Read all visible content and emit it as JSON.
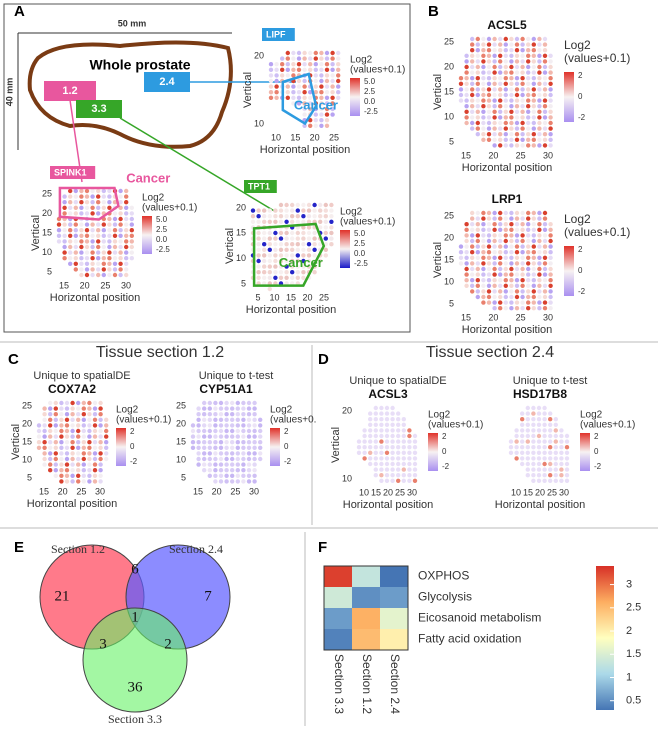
{
  "panels": {
    "a": {
      "label": "A",
      "scale_x": "50 mm",
      "scale_y": "40 mm",
      "organ": "Whole prostate",
      "sections": [
        "1.2",
        "2.4",
        "3.3"
      ],
      "plots": [
        {
          "gene": "LIPF",
          "region": "Cancer",
          "ylabel": "Vertical",
          "xlabel": "Horizontal position",
          "xticks": [
            "10",
            "15",
            "20",
            "25"
          ],
          "yticks": [
            "20",
            "10"
          ],
          "legend_title": [
            "Log2",
            "(values+0.1)"
          ],
          "legend_ticks": [
            "5.0",
            "2.5",
            "0.0",
            "-2.5"
          ]
        },
        {
          "gene": "SPINK1",
          "region": "Cancer",
          "ylabel": "Vertical",
          "xlabel": "Horizontal position",
          "xticks": [
            "15",
            "20",
            "25",
            "30"
          ],
          "yticks": [
            "25",
            "20",
            "15",
            "10",
            "5"
          ],
          "legend_title": [
            "Log2",
            "(values+0.1)"
          ],
          "legend_ticks": [
            "5.0",
            "2.5",
            "0.0",
            "-2.5"
          ]
        },
        {
          "gene": "TPT1",
          "region": "Cancer",
          "ylabel": "Vertical",
          "xlabel": "Horizontal position",
          "xticks": [
            "5",
            "10",
            "15",
            "20",
            "25"
          ],
          "yticks": [
            "20",
            "15",
            "10",
            "5"
          ],
          "legend_title": [
            "Log2",
            "(values+0.1)"
          ],
          "legend_ticks": [
            "5.0",
            "2.5",
            "0.0",
            "-2.5"
          ]
        }
      ]
    },
    "b": {
      "label": "B",
      "plots": [
        {
          "gene": "ACSL5",
          "ylabel": "Vertical",
          "xlabel": "Horizontal position",
          "xticks": [
            "15",
            "20",
            "25",
            "30"
          ],
          "yticks": [
            "25",
            "20",
            "15",
            "10",
            "5"
          ],
          "legend_title": [
            "Log2",
            "(values+0.1)"
          ],
          "legend_ticks": [
            "2",
            "0",
            "-2"
          ]
        },
        {
          "gene": "LRP1",
          "ylabel": "Vertical",
          "xlabel": "Horizontal position",
          "xticks": [
            "15",
            "20",
            "25",
            "30"
          ],
          "yticks": [
            "25",
            "20",
            "15",
            "10",
            "5"
          ],
          "legend_title": [
            "Log2",
            "(values+0.1)"
          ],
          "legend_ticks": [
            "2",
            "0",
            "-2"
          ]
        }
      ]
    },
    "c": {
      "label": "C",
      "title": "Tissue section 1.2",
      "plots": [
        {
          "subtitle": "Unique to spatialDE",
          "gene": "COX7A2",
          "ylabel": "Vertical",
          "xlabel": "Horizontal position",
          "xticks": [
            "15",
            "20",
            "25",
            "30"
          ],
          "yticks": [
            "25",
            "20",
            "15",
            "10",
            "5"
          ],
          "legend_title": [
            "Log2",
            "(values+0.1)"
          ],
          "legend_ticks": [
            "2",
            "0",
            "-2"
          ]
        },
        {
          "subtitle": "Unique to t-test",
          "gene": "CYP51A1",
          "xticks": [
            "15",
            "20",
            "25",
            "30"
          ],
          "yticks": [
            "25",
            "20",
            "15",
            "10",
            "5"
          ],
          "legend_title": [
            "Log2",
            "(values+0."
          ],
          "legend_ticks": [
            "2",
            "0",
            "-2"
          ]
        }
      ]
    },
    "d": {
      "label": "D",
      "title": "Tissue section 2.4",
      "plots": [
        {
          "subtitle": "Unique to spatialDE",
          "gene": "ACSL3",
          "ylabel": "Vertical",
          "xlabel": "Horizontal position",
          "xticks": [
            "10",
            "15",
            "20",
            "25",
            "30"
          ],
          "yticks": [
            "20",
            "10"
          ],
          "legend_title": [
            "Log2",
            "(values+0.1)"
          ],
          "legend_ticks": [
            "2",
            "0",
            "-2"
          ]
        },
        {
          "subtitle": "Unique to t-test",
          "gene": "HSD17B8",
          "xlabel": "Horizontal position",
          "xticks": [
            "10",
            "15",
            "20",
            "25",
            "30"
          ],
          "legend_title": [
            "Log2",
            "(values+0.1)"
          ],
          "legend_ticks": [
            "2",
            "0",
            "-2"
          ]
        }
      ]
    },
    "e": {
      "label": "E",
      "sets": [
        "Section 1.2",
        "Section 2.4",
        "Section 3.3"
      ],
      "counts": {
        "only_1_2": 21,
        "only_2_4": 7,
        "only_3_3": 36,
        "s1_2_and_2_4": 6,
        "s1_2_and_3_3": 3,
        "s2_4_and_3_3": 2,
        "all": 1
      }
    },
    "f": {
      "label": "F",
      "rows": [
        "OXPHOS",
        "Glycolysis",
        "Eicosanoid metabolism",
        "Fatty acid oxidation"
      ],
      "columns": [
        "Section 3.3",
        "Section 1.2",
        "Section 2.4"
      ],
      "values": [
        [
          3.3,
          1.3,
          0.3
        ],
        [
          1.4,
          0.5,
          0.6
        ],
        [
          0.6,
          2.6,
          1.6
        ],
        [
          0.4,
          2.5,
          2.0
        ]
      ],
      "clim": [
        0.3,
        3.4
      ],
      "colorbar_ticks": [
        3,
        2.5,
        2,
        1.5,
        1,
        0.5
      ]
    }
  }
}
